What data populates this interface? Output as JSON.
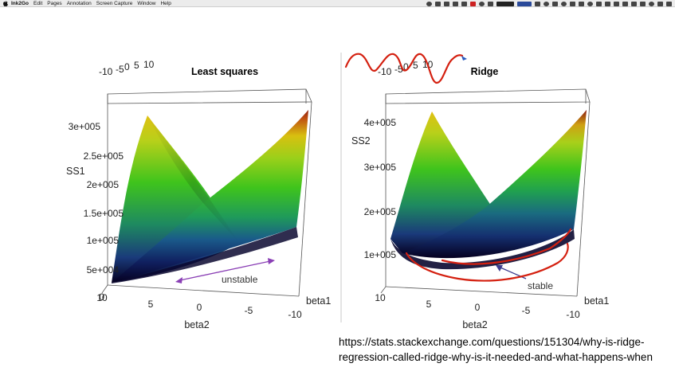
{
  "menubar": {
    "items": [
      "Ink2Go",
      "Edit",
      "Pages",
      "Annotation",
      "Screen Capture",
      "Window",
      "Help"
    ]
  },
  "left_plot": {
    "title": "Least squares",
    "zlabel": "SS1",
    "ztick_labels": [
      "3e+005",
      "2.5e+005",
      "2e+005",
      "1.5e+005",
      "1e+005",
      "5e+004",
      "0"
    ],
    "beta1_label": "beta1",
    "beta2_label": "beta2",
    "beta1_tick_labels": [
      "-10",
      "-5",
      "0",
      "5",
      "10"
    ],
    "beta2_tick_labels": [
      "10",
      "5",
      "0",
      "-5",
      "-10"
    ],
    "annotation": "unstable",
    "annotation_color": "#8a3fb5"
  },
  "right_plot": {
    "title": "Ridge",
    "zlabel": "SS2",
    "ztick_labels": [
      "4e+005",
      "3e+005",
      "2e+005",
      "1e+005"
    ],
    "beta1_label": "beta1",
    "beta2_label": "beta2",
    "beta1_tick_labels": [
      "-10",
      "-5",
      "0",
      "5",
      "10"
    ],
    "beta2_tick_labels": [
      "10",
      "5",
      "0",
      "-5",
      "-10"
    ],
    "annotation": "stable",
    "annotation_color": "#3d3d8f",
    "ink_color": "#d42010"
  },
  "source_url": "https://stats.stackexchange.com/questions/151304/why-is-ridge-regression-called-ridge-why-is-it-needed-and-what-happens-when"
}
